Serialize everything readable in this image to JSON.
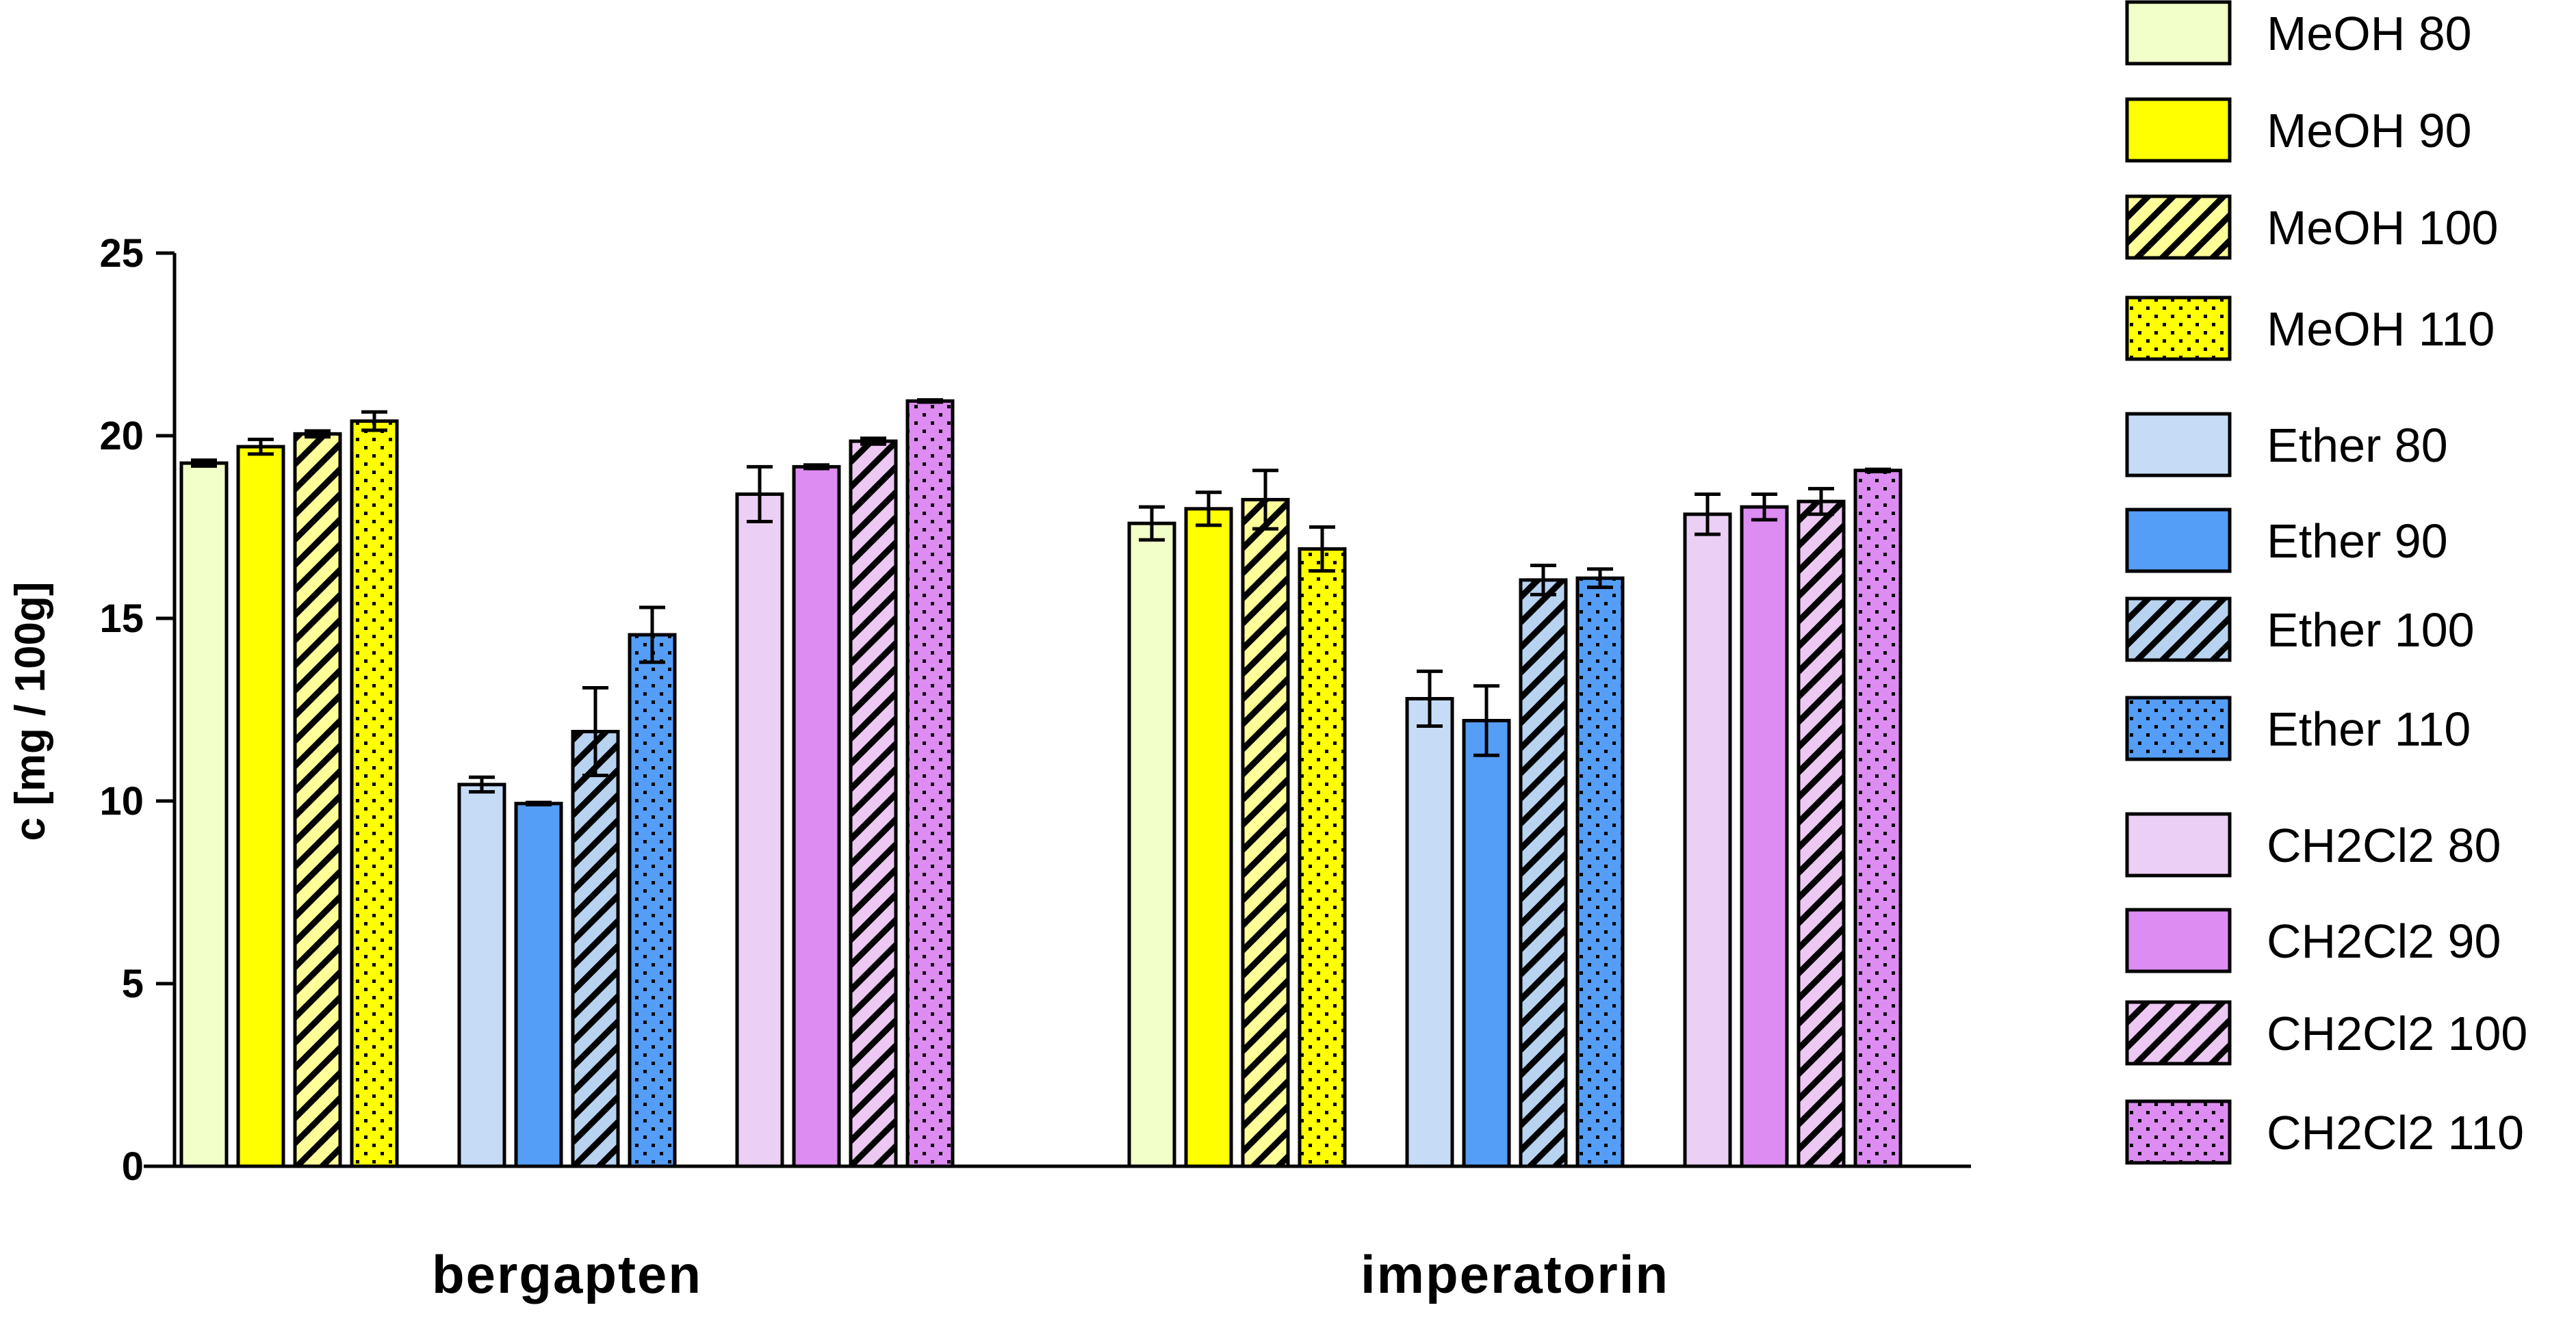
{
  "chart_data": {
    "type": "bar",
    "ylabel": "c [mg / 100g]",
    "ylim": [
      0,
      25
    ],
    "yticks": [
      0,
      5,
      10,
      15,
      20,
      25
    ],
    "grid": false,
    "legend_position": "right",
    "categories": [
      "bergapten",
      "imperatorin"
    ],
    "groups": [
      {
        "name": "MeOH",
        "series": [
          "MeOH 80",
          "MeOH 90",
          "MeOH 100",
          "MeOH 110"
        ]
      },
      {
        "name": "Ether",
        "series": [
          "Ether 80",
          "Ether 90",
          "Ether 100",
          "Ether 110"
        ]
      },
      {
        "name": "CH2Cl2",
        "series": [
          "CH2Cl2 80",
          "CH2Cl2 90",
          "CH2Cl2 100",
          "CH2Cl2 110"
        ]
      }
    ],
    "series": [
      {
        "name": "MeOH 80",
        "color": "#f2ffc8",
        "pattern": "solid",
        "values": [
          19.25,
          17.6
        ],
        "errors": [
          0.08,
          0.45
        ]
      },
      {
        "name": "MeOH 90",
        "color": "#ffff00",
        "pattern": "solid",
        "values": [
          19.7,
          18.0
        ],
        "errors": [
          0.2,
          0.45
        ]
      },
      {
        "name": "MeOH 100",
        "color": "#ffff99",
        "pattern": "hatch",
        "values": [
          20.05,
          18.25
        ],
        "errors": [
          0.08,
          0.8
        ]
      },
      {
        "name": "MeOH 110",
        "color": "#ffff00",
        "pattern": "dots",
        "values": [
          20.4,
          16.9
        ],
        "errors": [
          0.25,
          0.6
        ]
      },
      {
        "name": "Ether 80",
        "color": "#c6dcf6",
        "pattern": "solid",
        "values": [
          10.45,
          12.8
        ],
        "errors": [
          0.2,
          0.75
        ]
      },
      {
        "name": "Ether 90",
        "color": "#559ef7",
        "pattern": "solid",
        "values": [
          9.93,
          12.2
        ],
        "errors": [
          0.03,
          0.95
        ]
      },
      {
        "name": "Ether 100",
        "color": "#b7d3f0",
        "pattern": "hatch",
        "values": [
          11.9,
          16.05
        ],
        "errors": [
          1.2,
          0.4
        ]
      },
      {
        "name": "Ether 110",
        "color": "#559ef7",
        "pattern": "dots",
        "values": [
          14.55,
          16.1
        ],
        "errors": [
          0.75,
          0.25
        ]
      },
      {
        "name": "CH2Cl2 80",
        "color": "#eccff4",
        "pattern": "solid",
        "values": [
          18.4,
          17.85
        ],
        "errors": [
          0.75,
          0.55
        ]
      },
      {
        "name": "CH2Cl2 90",
        "color": "#dd8cf2",
        "pattern": "solid",
        "values": [
          19.15,
          18.05
        ],
        "errors": [
          0.05,
          0.35
        ]
      },
      {
        "name": "CH2Cl2 100",
        "color": "#ecc8f3",
        "pattern": "hatch",
        "values": [
          19.85,
          18.2
        ],
        "errors": [
          0.08,
          0.35
        ]
      },
      {
        "name": "CH2Cl2 110",
        "color": "#dd8cf2",
        "pattern": "dots",
        "values": [
          20.95,
          19.05
        ],
        "errors": [
          0.03,
          0.03
        ]
      }
    ]
  }
}
